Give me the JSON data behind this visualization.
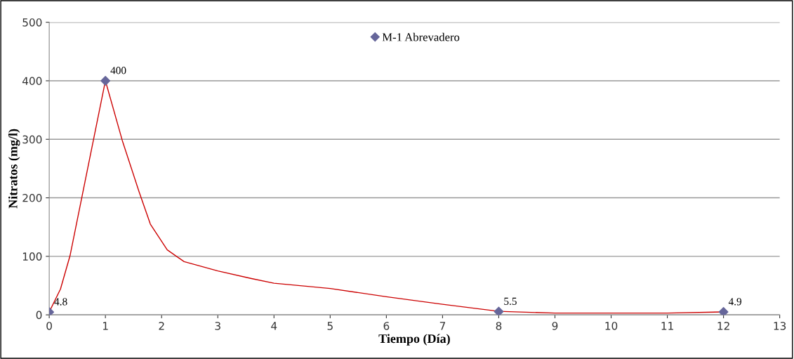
{
  "chart_data": {
    "type": "line",
    "xlabel": "Tiempo (Día)",
    "ylabel": "Nitratos (mg/l)",
    "xlim": [
      0,
      13
    ],
    "xticks": [
      0,
      1,
      2,
      3,
      4,
      5,
      6,
      7,
      8,
      9,
      10,
      11,
      12,
      13
    ],
    "ylim": [
      0,
      500
    ],
    "yticks": [
      0,
      100,
      200,
      300,
      400,
      500
    ],
    "grid": "y",
    "legend": "top",
    "series": [
      {
        "color": "#cc0000",
        "marker": "none",
        "x": [
          0,
          0.2,
          0.37,
          1,
          1.3,
          1.6,
          1.8,
          2.1,
          2.4,
          3,
          3.6,
          4,
          5,
          6,
          7,
          8,
          9,
          10,
          11,
          12
        ],
        "values": [
          5,
          44,
          101,
          400,
          298,
          210,
          155,
          111,
          91,
          75,
          62,
          54,
          45,
          31,
          18,
          6,
          3,
          3,
          3,
          5
        ]
      },
      {
        "type": "scatter",
        "name": "M-1 Abrevadero",
        "color": "#66669a",
        "marker": "diamond",
        "data_labels": true,
        "x": [
          0,
          1,
          8,
          12
        ],
        "values": [
          4.8,
          400,
          5.5,
          4.9
        ]
      }
    ]
  }
}
